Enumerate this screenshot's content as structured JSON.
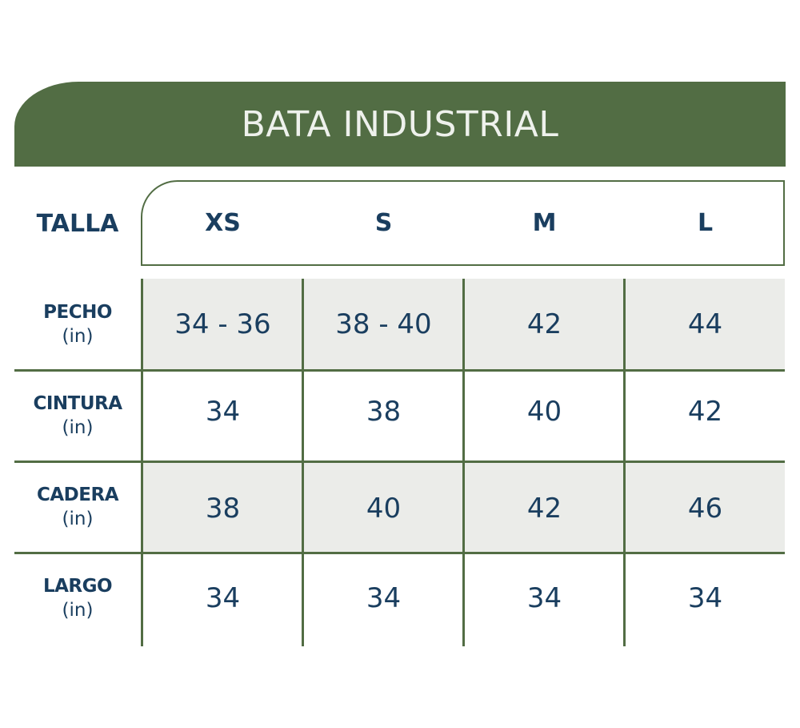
{
  "title": "BATA INDUSTRIAL",
  "size_label": "TALLA",
  "sizes": [
    "XS",
    "S",
    "M",
    "L"
  ],
  "rows": [
    {
      "name": "PECHO",
      "unit": "(in)",
      "values": [
        "34 - 36",
        "38 - 40",
        "42",
        "44"
      ]
    },
    {
      "name": "CINTURA",
      "unit": "(in)",
      "values": [
        "34",
        "38",
        "40",
        "42"
      ]
    },
    {
      "name": "CADERA",
      "unit": "(in)",
      "values": [
        "38",
        "40",
        "42",
        "46"
      ]
    },
    {
      "name": "LARGO",
      "unit": "(in)",
      "values": [
        "34",
        "34",
        "34",
        "34"
      ]
    }
  ],
  "colors": {
    "header_green": "#526d44",
    "text_navy": "#1a3e5f",
    "shade": "#ebece9"
  }
}
